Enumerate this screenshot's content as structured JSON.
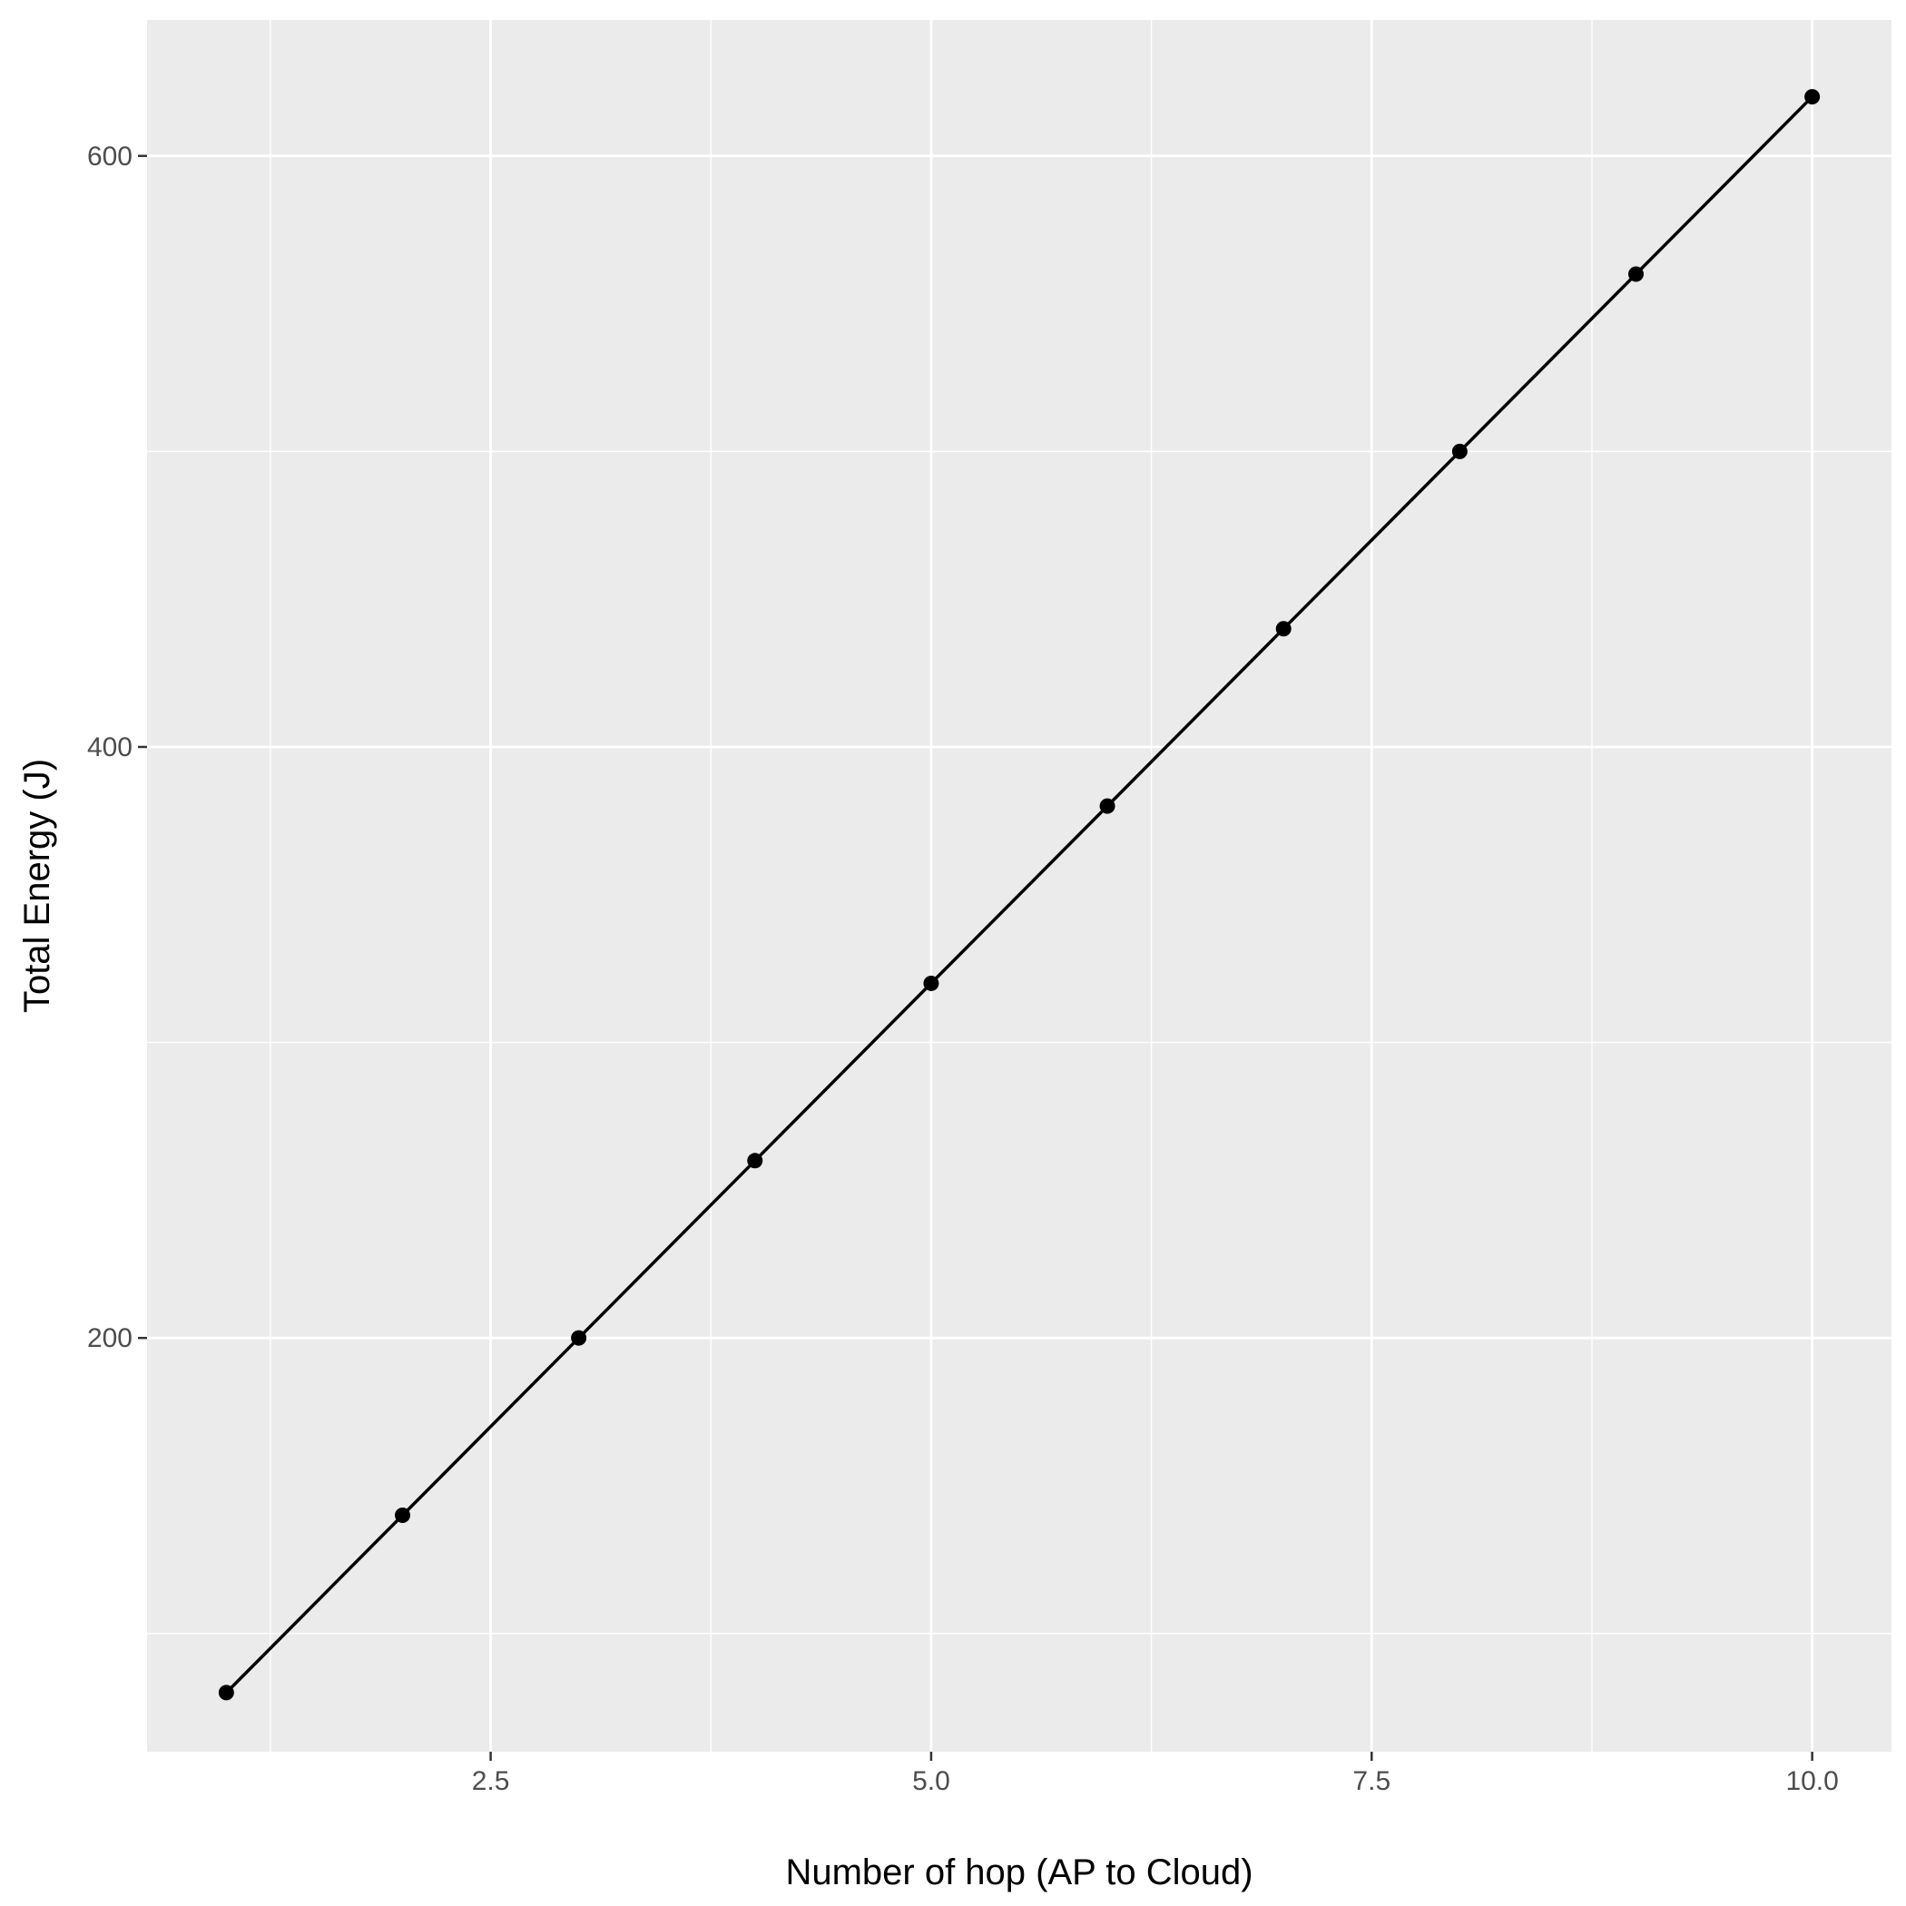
{
  "chart_data": {
    "type": "line",
    "title": "",
    "xlabel": "Number of hop (AP to Cloud)",
    "ylabel": "Total Energy (J)",
    "xlim": [
      0.55,
      10.45
    ],
    "ylim": [
      60,
      646
    ],
    "x_ticks": [
      2.5,
      5.0,
      7.5,
      10.0
    ],
    "x_tick_labels": [
      "2.5",
      "5.0",
      "7.5",
      "10.0"
    ],
    "x_minor_ticks": [
      1.25,
      3.75,
      6.25,
      8.75
    ],
    "y_ticks": [
      200,
      400,
      600
    ],
    "y_tick_labels": [
      "200",
      "400",
      "600"
    ],
    "y_minor_ticks": [
      100,
      300,
      500
    ],
    "grid": true,
    "legend": "none",
    "colors": {
      "panel_background": "#ebebeb",
      "grid": "#ffffff",
      "line": "#000000",
      "points": "#000000"
    },
    "series": [
      {
        "x": [
          1,
          2,
          3,
          4,
          5,
          6,
          7,
          8,
          9,
          10
        ],
        "values": [
          80,
          140,
          200,
          260,
          320,
          380,
          440,
          500,
          560,
          620
        ]
      }
    ]
  }
}
